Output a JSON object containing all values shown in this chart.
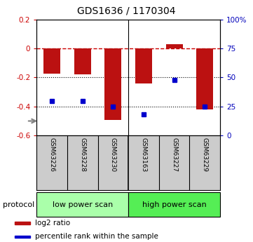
{
  "title": "GDS1636 / 1170304",
  "samples": [
    "GSM63226",
    "GSM63228",
    "GSM63230",
    "GSM63163",
    "GSM63227",
    "GSM63229"
  ],
  "log2_ratio": [
    -0.172,
    -0.178,
    -0.492,
    -0.242,
    0.028,
    -0.418
  ],
  "percentile_rank": [
    29.5,
    29.5,
    24.8,
    18.2,
    47.8,
    24.8
  ],
  "ylim_left": [
    -0.6,
    0.2
  ],
  "ylim_right": [
    0,
    100
  ],
  "groups": [
    {
      "label": "low power scan",
      "indices": [
        0,
        1,
        2
      ],
      "color": "#aaffaa"
    },
    {
      "label": "high power scan",
      "indices": [
        3,
        4,
        5
      ],
      "color": "#55ee55"
    }
  ],
  "bar_color": "#bb1111",
  "point_color": "#0000cc",
  "bg_color": "#ffffff",
  "tick_label_color_left": "#cc0000",
  "tick_label_color_right": "#0000bb",
  "grid_dotted_values": [
    -0.2,
    -0.4
  ],
  "zero_line_color": "#cc0000",
  "legend_items": [
    {
      "color": "#bb1111",
      "label": "log2 ratio"
    },
    {
      "color": "#0000cc",
      "label": "percentile rank within the sample"
    }
  ]
}
